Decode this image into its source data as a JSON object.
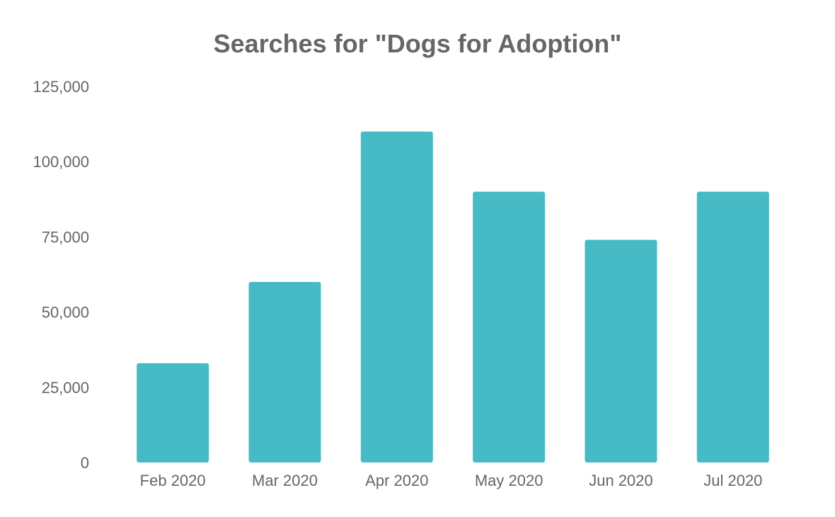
{
  "chart_data": {
    "type": "bar",
    "title": "Searches for \"Dogs for Adoption\"",
    "xlabel": "",
    "ylabel": "",
    "categories": [
      "Feb 2020",
      "Mar 2020",
      "Apr 2020",
      "May 2020",
      "Jun 2020",
      "Jul 2020"
    ],
    "values": [
      33000,
      60000,
      110000,
      90000,
      74000,
      90000
    ],
    "ylim": [
      0,
      125000
    ],
    "yticks": [
      0,
      25000,
      50000,
      75000,
      100000,
      125000
    ],
    "ytick_labels": [
      "0",
      "25,000",
      "50,000",
      "75,000",
      "100,000",
      "125,000"
    ],
    "grid": false,
    "legend": "none",
    "bar_color": "#47BBC5",
    "text_color": "#666666"
  }
}
